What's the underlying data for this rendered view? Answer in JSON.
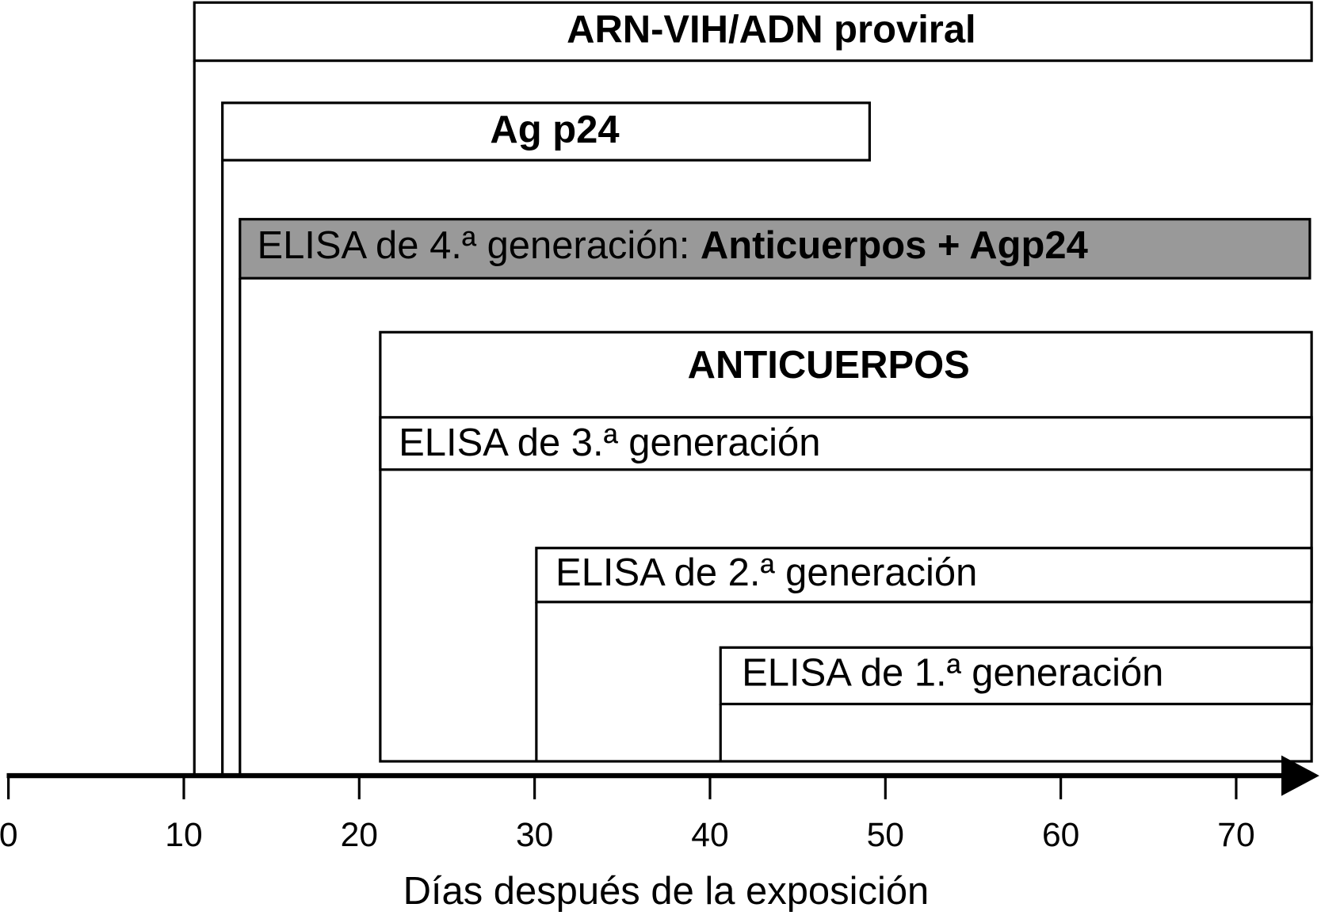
{
  "chart_data": {
    "type": "timeline",
    "xlabel": "Días después de la exposición",
    "xlim": [
      0,
      74.5
    ],
    "xticks": [
      0,
      10,
      20,
      30,
      40,
      50,
      60,
      70
    ],
    "bars": [
      {
        "label": [
          "ARN-VIH/ADN proviral"
        ],
        "start": 10.6,
        "end": 74.3
      },
      {
        "label": [
          "Ag p24"
        ],
        "start": 12.2,
        "end": 49.1
      },
      {
        "label": [
          "ELISA de 4.ª generación: ",
          "Anticuerpos + Agp24"
        ],
        "start": 13.2,
        "end": 74.2,
        "color": "#999999"
      },
      {
        "label": [
          "ANTICUERPOS"
        ],
        "start": 21.2,
        "end": 74.3
      },
      {
        "label": [
          "ELISA de 3.ª generación"
        ],
        "start": 21.2,
        "end": 74.3
      },
      {
        "label": [
          "ELISA de 2.ª generación"
        ],
        "start": 30.1,
        "end": 74.3
      },
      {
        "label": [
          "ELISA de 1.ª generación"
        ],
        "start": 40.6,
        "end": 74.3
      }
    ]
  }
}
